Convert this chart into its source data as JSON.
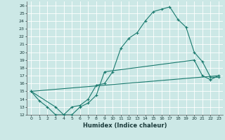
{
  "xlabel": "Humidex (Indice chaleur)",
  "bg_color": "#cce8e6",
  "grid_color": "#ffffff",
  "line_color": "#1a7a6e",
  "xlim": [
    -0.5,
    23.5
  ],
  "ylim": [
    12,
    26.5
  ],
  "line1_x": [
    0,
    1,
    2,
    3,
    4,
    5,
    6,
    7,
    8,
    9,
    10,
    11,
    12,
    13,
    14,
    15,
    16,
    17,
    18,
    19,
    20,
    21,
    22,
    23
  ],
  "line1_y": [
    15.0,
    13.8,
    13.0,
    12.0,
    12.0,
    13.0,
    13.2,
    14.0,
    15.8,
    16.0,
    17.5,
    20.5,
    21.8,
    22.5,
    24.0,
    25.2,
    25.5,
    25.8,
    24.2,
    23.2,
    20.0,
    18.8,
    16.8,
    16.8
  ],
  "line2_x": [
    0,
    3,
    4,
    5,
    6,
    7,
    8,
    9,
    20,
    21,
    22,
    23
  ],
  "line2_y": [
    15.0,
    13.0,
    12.0,
    12.0,
    13.0,
    13.5,
    14.5,
    17.5,
    19.0,
    17.0,
    16.5,
    17.0
  ],
  "line3_x": [
    0,
    23
  ],
  "line3_y": [
    15.0,
    17.0
  ]
}
